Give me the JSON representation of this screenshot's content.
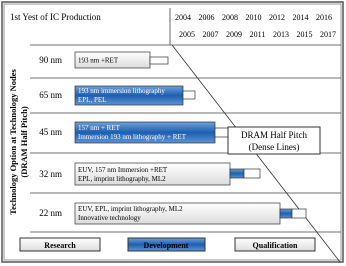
{
  "header": {
    "title": "1st Yest of IC Production",
    "years_top": [
      "2004",
      "2006",
      "2008",
      "2010",
      "2012",
      "2014",
      "2016"
    ],
    "years_bottom": [
      "2005",
      "2007",
      "2009",
      "2011",
      "2013",
      "2015",
      "2017"
    ]
  },
  "axis_label": [
    "Technology Option at Technology Nodes",
    "(DRAM Half Pitch)"
  ],
  "rows": [
    {
      "node": "90 nm",
      "options": [
        "193 nm +RET"
      ]
    },
    {
      "node": "65 nm",
      "options": [
        "193 nm immersion lithography",
        "EPL, PEL"
      ]
    },
    {
      "node": "45 nm",
      "options": [
        "157 nm + RET",
        "Immersion 193 nm lithography + RET"
      ]
    },
    {
      "node": "32 nm",
      "options": [
        "EUV, 157 nm Immersion +RET",
        "EPL, imprint lithography, ML2"
      ]
    },
    {
      "node": "22 nm",
      "options": [
        "EUV, EPL, imprint lithography, ML2",
        "Innovative technology"
      ]
    }
  ],
  "callout": [
    "DRAM Half Pitch",
    "(Dense Lines)"
  ],
  "legend": [
    "Research",
    "Development",
    "Qualification"
  ]
}
